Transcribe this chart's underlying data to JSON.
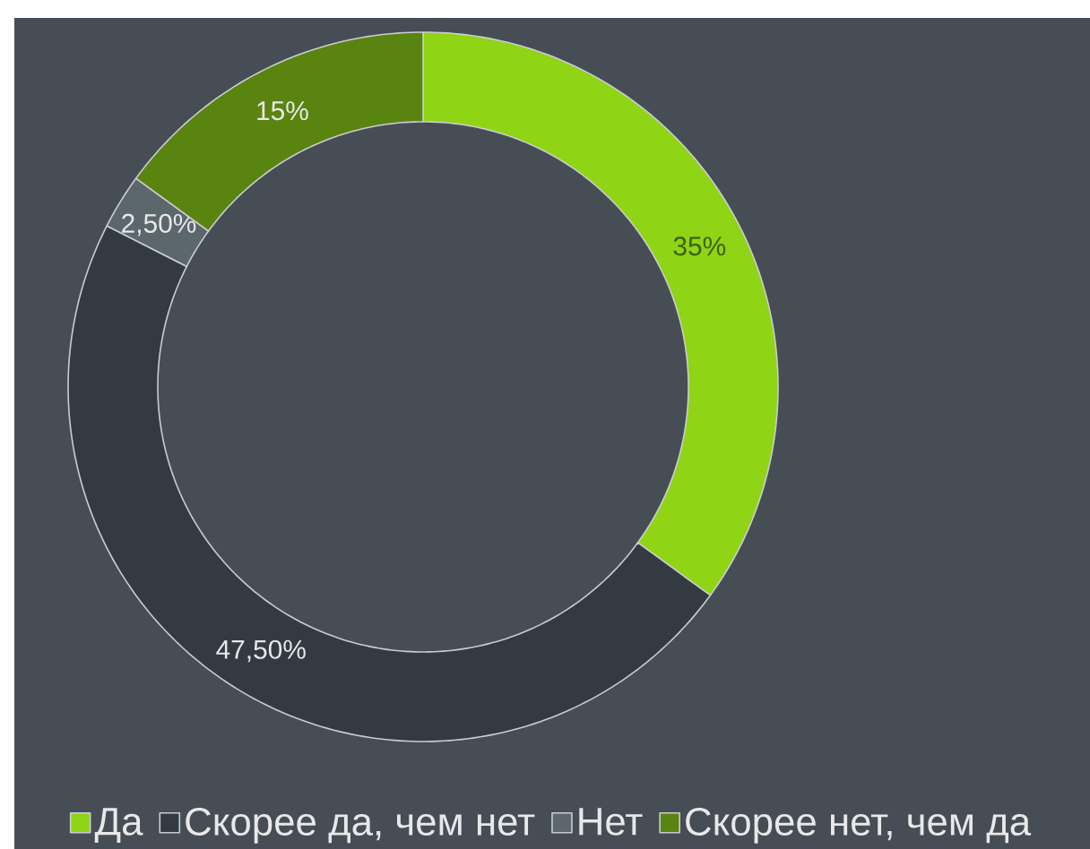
{
  "chart_data": {
    "type": "donut",
    "categories": [
      "Да",
      "Скорее да, чем нет",
      "Нет",
      "Скорее нет, чем да"
    ],
    "values": [
      35,
      47.5,
      2.5,
      15
    ],
    "colors": [
      "#8fd415",
      "#343a42",
      "#5c676d",
      "#5a8410"
    ],
    "value_labels": [
      "35%",
      "47,50%",
      "2,50%",
      "15%"
    ],
    "legend": "bottom"
  }
}
